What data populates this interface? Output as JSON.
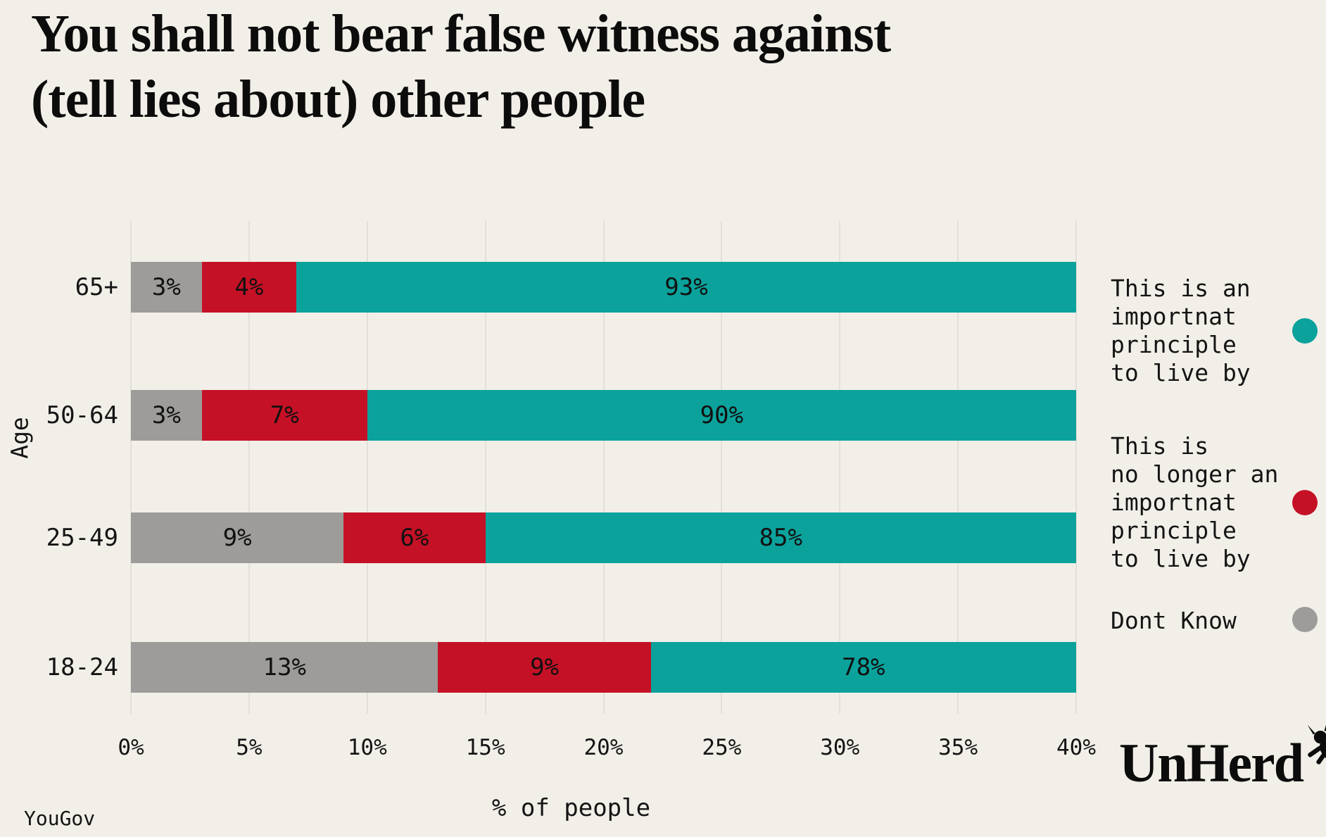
{
  "title": {
    "line1": "You shall not bear false witness against",
    "line2": "(tell lies about) other people"
  },
  "source": "YouGov",
  "brand": {
    "name": "UnHerd"
  },
  "legend": [
    {
      "label": "This is an\nimportnat\nprinciple\nto live by",
      "color": "#0ba29c"
    },
    {
      "label": "This is\nno longer an\nimportnat\nprinciple\nto live by",
      "color": "#c51126"
    },
    {
      "label": "Dont Know",
      "color": "#9d9c9a"
    }
  ],
  "chart_data": {
    "type": "bar",
    "stacked": true,
    "orientation": "horizontal",
    "title": "You shall not bear false witness against (tell lies about) other people",
    "categories": [
      "65+",
      "50-64",
      "25-49",
      "18-24"
    ],
    "series": [
      {
        "name": "Dont Know",
        "color": "#9d9c9a",
        "values": [
          3,
          3,
          9,
          13
        ]
      },
      {
        "name": "This is no longer an importnat principle to live by",
        "color": "#c51126",
        "values": [
          4,
          7,
          6,
          9
        ]
      },
      {
        "name": "This is an importnat principle to live by",
        "color": "#0ba29c",
        "values": [
          93,
          90,
          85,
          78
        ]
      }
    ],
    "xlabel": "% of people",
    "ylabel": "Age",
    "xlim": [
      0,
      40
    ],
    "x_ticks": [
      0,
      5,
      10,
      15,
      20,
      25,
      30,
      35,
      40
    ],
    "x_tick_labels": [
      "0%",
      "5%",
      "10%",
      "15%",
      "20%",
      "25%",
      "30%",
      "35%",
      "40%"
    ],
    "grid": "vertical",
    "legend_position": "right",
    "render_note": "last series segment fills remaining axis width to 40%"
  }
}
